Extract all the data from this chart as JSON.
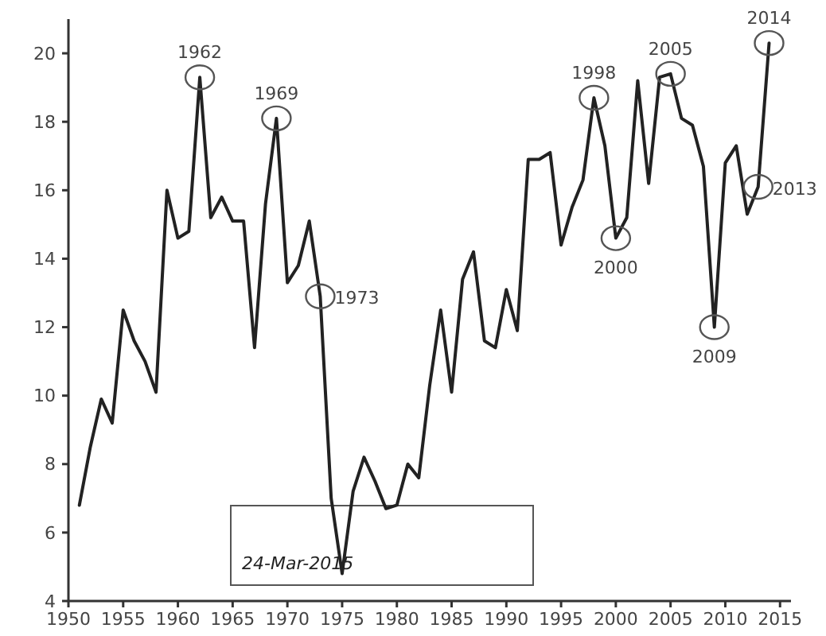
{
  "chart_data": {
    "type": "line",
    "x": [
      1951,
      1952,
      1953,
      1954,
      1955,
      1956,
      1957,
      1958,
      1959,
      1960,
      1961,
      1962,
      1963,
      1964,
      1965,
      1966,
      1967,
      1968,
      1969,
      1970,
      1971,
      1972,
      1973,
      1974,
      1975,
      1976,
      1977,
      1978,
      1979,
      1980,
      1981,
      1982,
      1983,
      1984,
      1985,
      1986,
      1987,
      1988,
      1989,
      1990,
      1991,
      1992,
      1993,
      1994,
      1995,
      1996,
      1997,
      1998,
      1999,
      2000,
      2001,
      2002,
      2003,
      2004,
      2005,
      2006,
      2007,
      2008,
      2009,
      2010,
      2011,
      2012,
      2013,
      2014
    ],
    "series": [
      {
        "color": "#222222",
        "values": [
          6.8,
          8.5,
          9.9,
          9.2,
          12.5,
          11.6,
          11.0,
          10.1,
          16.0,
          14.6,
          14.8,
          19.3,
          15.2,
          15.8,
          15.1,
          15.1,
          11.4,
          15.6,
          18.1,
          13.3,
          13.8,
          15.1,
          12.9,
          7.0,
          4.8,
          7.2,
          8.2,
          7.5,
          6.7,
          6.8,
          8.0,
          7.6,
          10.3,
          12.5,
          10.1,
          13.4,
          14.2,
          11.6,
          11.4,
          13.1,
          11.9,
          16.9,
          16.9,
          17.1,
          14.4,
          15.5,
          16.3,
          18.7,
          17.3,
          14.6,
          15.2,
          19.2,
          16.2,
          19.3,
          19.4,
          18.1,
          17.9,
          16.7,
          12.0,
          16.8,
          17.3,
          15.3,
          16.1,
          20.3
        ]
      }
    ],
    "xlim": [
      1950,
      2016
    ],
    "xticks": [
      1950,
      1955,
      1960,
      1965,
      1970,
      1975,
      1980,
      1985,
      1990,
      1995,
      2000,
      2005,
      2010,
      2015
    ],
    "ylim": [
      4,
      21
    ],
    "yticks": [
      4,
      6,
      8,
      10,
      12,
      14,
      16,
      18,
      20
    ],
    "grid": false,
    "marker": "none",
    "line_style": "solid",
    "annotations": [
      {
        "text": "1962",
        "x": 1962,
        "y": 19.3
      },
      {
        "text": "1969",
        "x": 1969,
        "y": 18.1
      },
      {
        "text": "1973",
        "x": 1973,
        "y": 12.9
      },
      {
        "text": "1998",
        "x": 1998,
        "y": 18.7
      },
      {
        "text": "2000",
        "x": 2000,
        "y": 14.6
      },
      {
        "text": "2005",
        "x": 2005,
        "y": 19.4
      },
      {
        "text": "2009",
        "x": 2009,
        "y": 12.0
      },
      {
        "text": "2013",
        "x": 2013,
        "y": 16.1
      },
      {
        "text": "2014",
        "x": 2014,
        "y": 20.3
      },
      "24-Mar-2015"
    ]
  }
}
